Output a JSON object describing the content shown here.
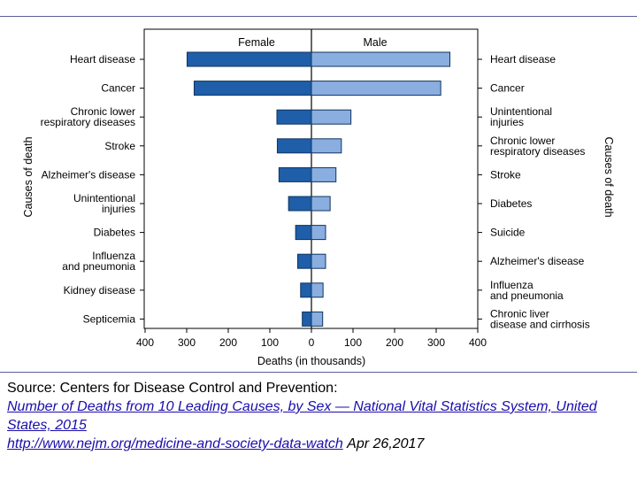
{
  "chart_data": {
    "type": "bar",
    "orientation": "horizontal-diverging",
    "xlabel": "Deaths (in thousands)",
    "ylabel_left": "Causes of death",
    "ylabel_right": "Causes of death",
    "xlim": [
      -400,
      400
    ],
    "xticks": [
      -400,
      -300,
      -200,
      -100,
      0,
      100,
      200,
      300,
      400
    ],
    "xtick_labels": [
      "400",
      "300",
      "200",
      "100",
      "0",
      "100",
      "200",
      "300",
      "400"
    ],
    "grid": false,
    "legend": "none",
    "series": [
      {
        "name": "Female",
        "color": "#1f5ea8",
        "categories": [
          "Heart disease",
          "Cancer",
          "Chronic lower respiratory diseases",
          "Stroke",
          "Alzheimer's disease",
          "Unintentional injuries",
          "Diabetes",
          "Influenza and pneumonia",
          "Kidney disease",
          "Septicemia"
        ],
        "values": [
          299,
          282,
          83,
          82,
          78,
          55,
          38,
          33,
          26,
          22
        ]
      },
      {
        "name": "Male",
        "color": "#8aaee0",
        "categories": [
          "Heart disease",
          "Cancer",
          "Unintentional injuries",
          "Chronic lower respiratory diseases",
          "Stroke",
          "Diabetes",
          "Suicide",
          "Alzheimer's disease",
          "Influenza and pneumonia",
          "Chronic liver disease and cirrhosis"
        ],
        "values": [
          333,
          311,
          95,
          72,
          59,
          45,
          34,
          34,
          28,
          27
        ]
      }
    ]
  },
  "source": {
    "line1": "Source: Centers for Disease Control and Prevention:",
    "link_text": "Number of Deaths from 10 Leading Causes, by Sex — National Vital Statistics System, United States, 2015",
    "url_text": "http://www.nejm.org/medicine-and-society-data-watch",
    "date": "Apr 26,2017"
  },
  "colors": {
    "rule": "#5b5f97",
    "axis": "#000000",
    "female": "#1f5ea8",
    "male": "#8aaee0"
  }
}
